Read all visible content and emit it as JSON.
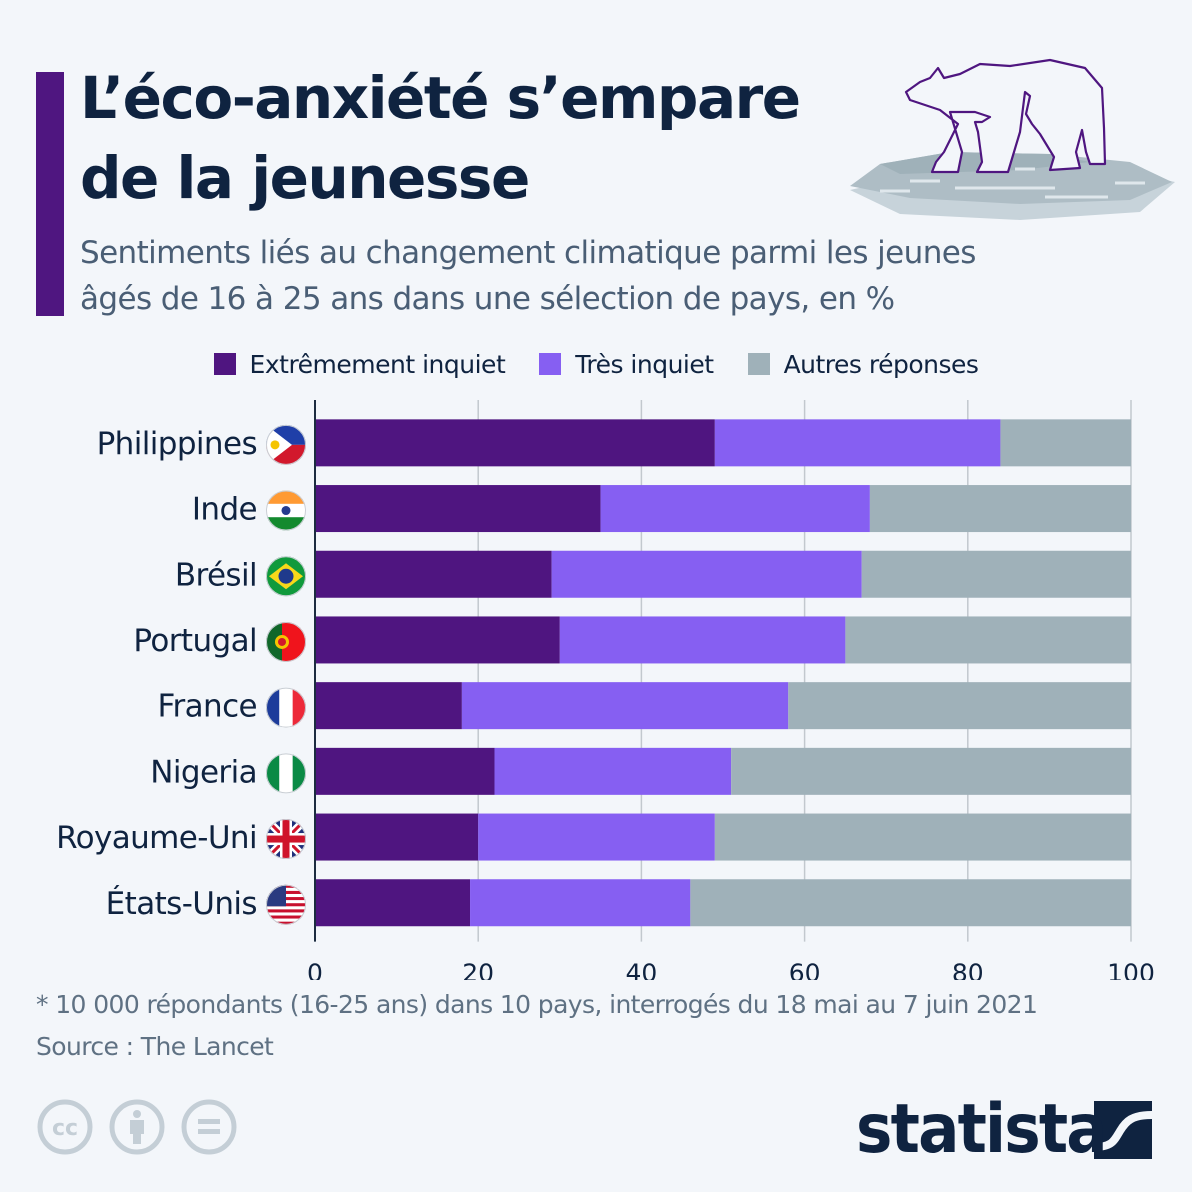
{
  "header": {
    "title_line1": "L’éco-anxiété s’empare",
    "title_line2": "de la jeunesse",
    "subtitle_line1": "Sentiments liés au changement climatique parmi les jeunes",
    "subtitle_line2": "âgés de 16 à 25 ans dans une sélection de pays, en %",
    "illustration": "polar-bear-on-ice-floe"
  },
  "colors": {
    "accent": "#4f1680",
    "extremely_worried": "#4f1580",
    "very_worried": "#865ff2",
    "other": "#9fb1b9",
    "text_dark": "#0f2340",
    "text_muted": "#5f7183"
  },
  "chart_data": {
    "type": "bar",
    "orientation": "horizontal",
    "stacked": true,
    "title": "L’éco-anxiété s’empare de la jeunesse",
    "subtitle": "Sentiments liés au changement climatique parmi les jeunes âgés de 16 à 25 ans dans une sélection de pays, en %",
    "categories": [
      "Philippines",
      "Inde",
      "Brésil",
      "Portugal",
      "France",
      "Nigeria",
      "Royaume-Uni",
      "États-Unis"
    ],
    "category_icons": [
      "flag-philippines",
      "flag-india",
      "flag-brazil",
      "flag-portugal",
      "flag-france",
      "flag-nigeria",
      "flag-uk",
      "flag-usa"
    ],
    "series": [
      {
        "name": "Extrêmement inquiet",
        "color": "#4f1580",
        "values": [
          49,
          35,
          29,
          30,
          18,
          22,
          20,
          19
        ]
      },
      {
        "name": "Très inquiet",
        "color": "#865ff2",
        "values": [
          35,
          33,
          38,
          35,
          40,
          29,
          29,
          27
        ]
      },
      {
        "name": "Autres réponses",
        "color": "#9fb1b9",
        "values": [
          16,
          32,
          33,
          35,
          42,
          49,
          51,
          54
        ]
      }
    ],
    "xlim": [
      0,
      100
    ],
    "xticks": [
      0,
      20,
      40,
      60,
      80,
      100
    ],
    "xtick_labels": [
      "0",
      "20",
      "40",
      "60",
      "80",
      "100"
    ],
    "xlabel": "",
    "ylabel": "",
    "grid": true,
    "legend_position": "top"
  },
  "footer": {
    "note": "* 10 000 répondants (16-25 ans) dans 10 pays, interrogés du 18 mai au 7 juin 2021",
    "source": "Source : The Lancet",
    "license_icons": [
      "cc-icon",
      "attribution-icon",
      "no-derivatives-icon"
    ],
    "brand": "statista"
  }
}
